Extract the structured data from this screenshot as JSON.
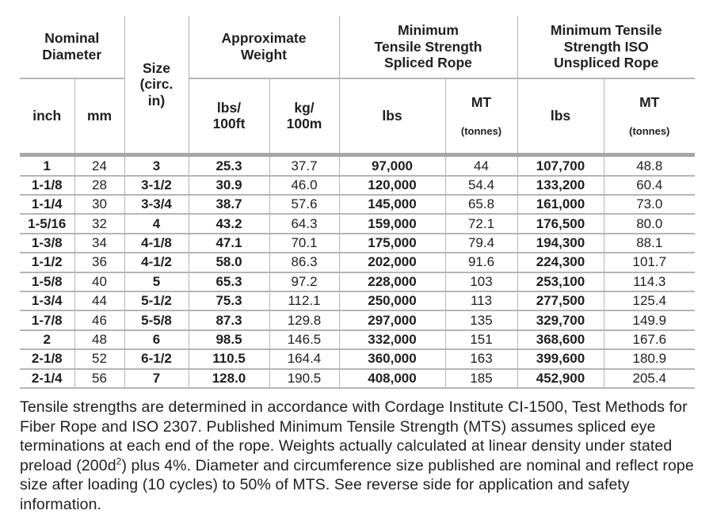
{
  "page": {
    "background": "#ffffff",
    "text_color": "#1f1f1f",
    "grid_color": "#b5b5b5",
    "thick_rule_color": "#a6a6a6"
  },
  "table": {
    "groups": {
      "nominal_diameter": "Nominal\nDiameter",
      "size": "Size\n(circ.\nin)",
      "approx_weight": "Approximate\nWeight",
      "mts_spliced": "Minimum\nTensile Strength\nSpliced Rope",
      "mts_iso_unspliced": "Minimum Tensile\nStrength ISO\nUnspliced Rope"
    },
    "subheaders": {
      "inch": "inch",
      "mm": "mm",
      "lbs_100ft": "lbs/\n100ft",
      "kg_100m": "kg/\n100m",
      "lbs_spliced": "lbs",
      "mt_spliced": "MT",
      "mt_spliced_unit": "(tonnes)",
      "lbs_unspliced": "lbs",
      "mt_unspliced": "MT",
      "mt_unspliced_unit": "(tonnes)"
    },
    "rows": [
      [
        "1",
        "24",
        "3",
        "25.3",
        "37.7",
        "97,000",
        "44",
        "107,700",
        "48.8"
      ],
      [
        "1-1/8",
        "28",
        "3-1/2",
        "30.9",
        "46.0",
        "120,000",
        "54.4",
        "133,200",
        "60.4"
      ],
      [
        "1-1/4",
        "30",
        "3-3/4",
        "38.7",
        "57.6",
        "145,000",
        "65.8",
        "161,000",
        "73.0"
      ],
      [
        "1-5/16",
        "32",
        "4",
        "43.2",
        "64.3",
        "159,000",
        "72.1",
        "176,500",
        "80.0"
      ],
      [
        "1-3/8",
        "34",
        "4-1/8",
        "47.1",
        "70.1",
        "175,000",
        "79.4",
        "194,300",
        "88.1"
      ],
      [
        "1-1/2",
        "36",
        "4-1/2",
        "58.0",
        "86.3",
        "202,000",
        "91.6",
        "224,300",
        "101.7"
      ],
      [
        "1-5/8",
        "40",
        "5",
        "65.3",
        "97.2",
        "228,000",
        "103",
        "253,100",
        "114.3"
      ],
      [
        "1-3/4",
        "44",
        "5-1/2",
        "75.3",
        "112.1",
        "250,000",
        "113",
        "277,500",
        "125.4"
      ],
      [
        "1-7/8",
        "46",
        "5-5/8",
        "87.3",
        "129.8",
        "297,000",
        "135",
        "329,700",
        "149.9"
      ],
      [
        "2",
        "48",
        "6",
        "98.5",
        "146.5",
        "332,000",
        "151",
        "368,600",
        "167.6"
      ],
      [
        "2-1/8",
        "52",
        "6-1/2",
        "110.5",
        "164.4",
        "360,000",
        "163",
        "399,600",
        "180.9"
      ],
      [
        "2-1/4",
        "56",
        "7",
        "128.0",
        "190.5",
        "408,000",
        "185",
        "452,900",
        "205.4"
      ]
    ]
  },
  "footer": {
    "before_sup": "Tensile strengths are determined in accordance with Cordage Institute CI-1500, Test Methods for Fiber Rope and ISO 2307. Published Minimum Tensile Strength (MTS) assumes spliced eye terminations at each end of the rope. Weights actually calculated at linear density under stated preload (200d",
    "sup": "2",
    "after_sup": ") plus 4%. Diameter and circumference size published are nominal and reflect rope size after loading (10 cycles) to 50% of MTS. See reverse side for application and safety information."
  }
}
